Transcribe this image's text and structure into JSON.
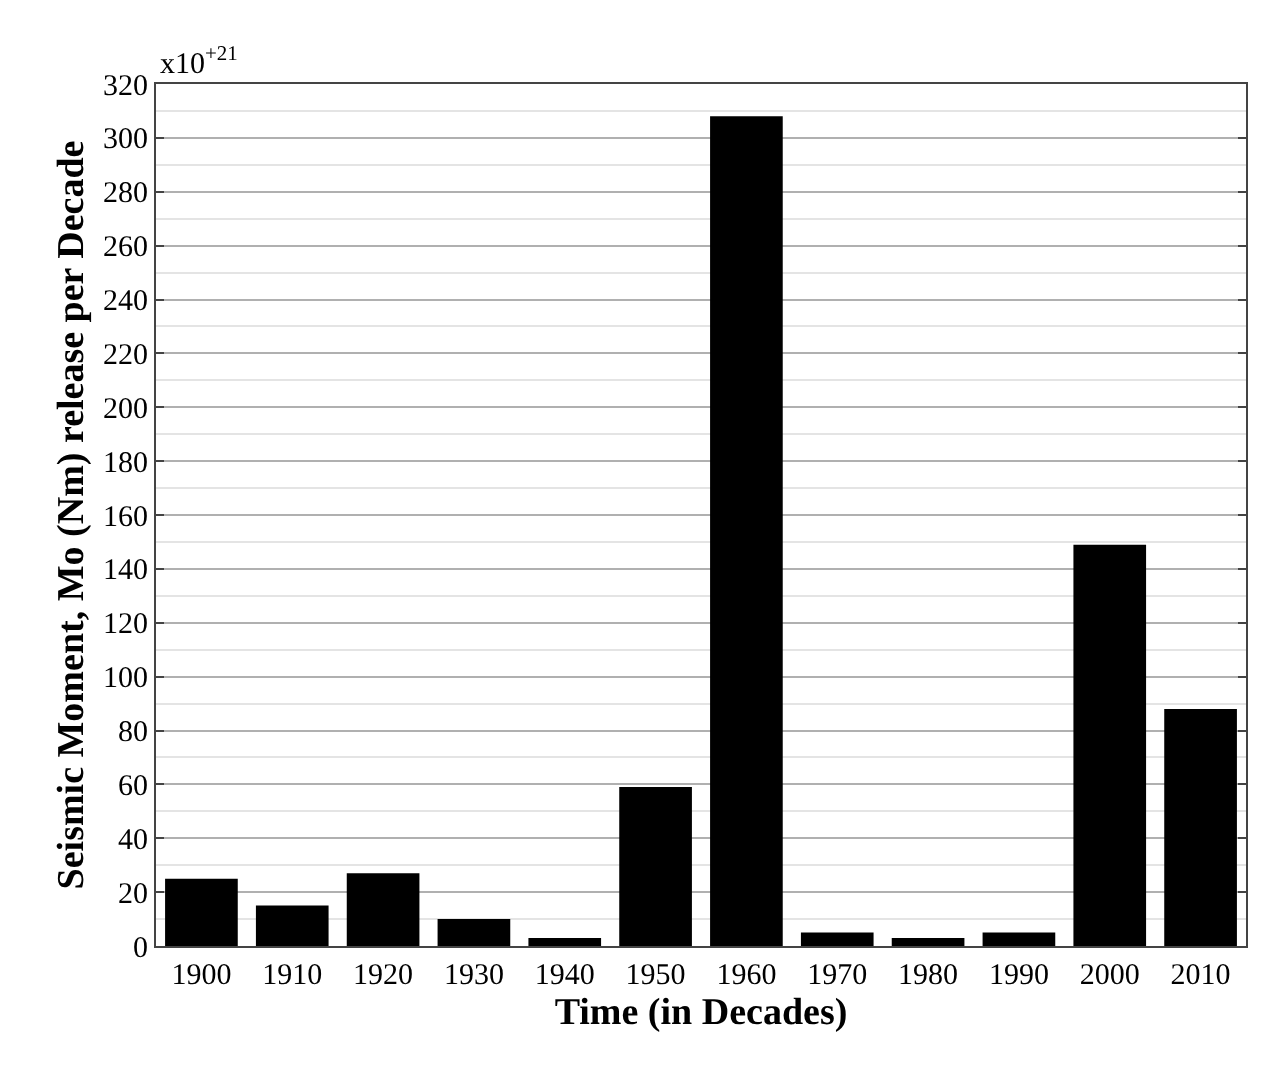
{
  "chart_data": {
    "type": "bar",
    "categories": [
      "1900",
      "1910",
      "1920",
      "1930",
      "1940",
      "1950",
      "1960",
      "1970",
      "1980",
      "1990",
      "2000",
      "2010"
    ],
    "values": [
      25,
      15,
      27,
      10,
      3,
      59,
      308,
      5,
      3,
      5,
      149,
      88
    ],
    "color": "#000000",
    "xlabel": "Time (in Decades)",
    "ylabel": "Seismic Moment, Mo (Nm) release per Decade",
    "annotations": [
      "x10$^{+21}$"
    ],
    "ylim": [
      0,
      320
    ],
    "yticks": [
      0,
      20,
      40,
      60,
      80,
      100,
      120,
      140,
      160,
      180,
      200,
      220,
      240,
      260,
      280,
      300,
      320
    ],
    "grid": "y"
  }
}
